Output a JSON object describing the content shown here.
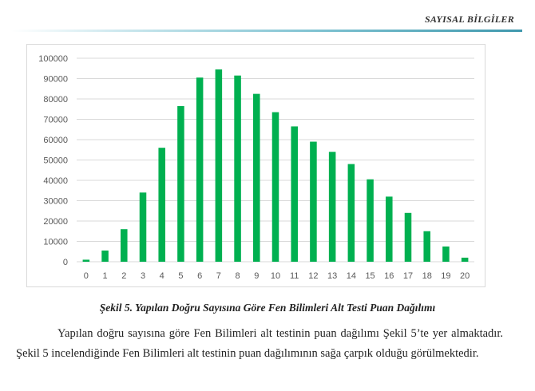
{
  "header": {
    "title": "SAYISAL BİLGİLER"
  },
  "chart_data": {
    "type": "bar",
    "categories": [
      "0",
      "1",
      "2",
      "3",
      "4",
      "5",
      "6",
      "7",
      "8",
      "9",
      "10",
      "11",
      "12",
      "13",
      "14",
      "15",
      "16",
      "17",
      "18",
      "19",
      "20"
    ],
    "values": [
      1000,
      5500,
      16000,
      34000,
      56000,
      76500,
      90500,
      94500,
      91500,
      82500,
      73500,
      66500,
      59000,
      54000,
      48000,
      40500,
      32000,
      24000,
      15000,
      7500,
      2000
    ],
    "yticks": [
      0,
      10000,
      20000,
      30000,
      40000,
      50000,
      60000,
      70000,
      80000,
      90000,
      100000
    ],
    "ylim": [
      0,
      100000
    ],
    "bar_color": "#00b050",
    "grid": true,
    "title": "",
    "xlabel": "",
    "ylabel": ""
  },
  "caption": "Şekil 5. Yapılan Doğru Sayısına Göre Fen Bilimleri Alt Testi Puan Dağılımı",
  "paragraph": "Yapılan doğru sayısına göre Fen Bilimleri alt testinin puan dağılımı Şekil 5’te yer almaktadır. Şekil 5 incelendiğinde Fen Bilimleri alt testinin puan dağılımının sağa çarpık olduğu görülmektedir."
}
